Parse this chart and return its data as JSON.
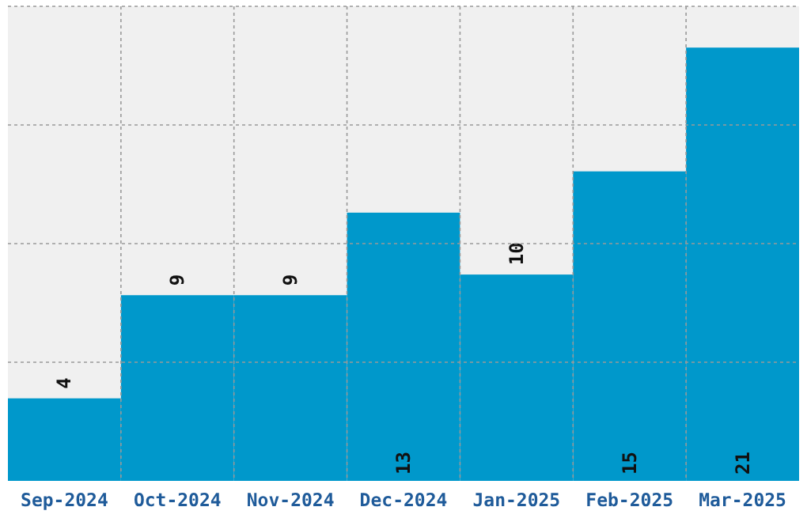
{
  "chart_data": {
    "type": "bar",
    "categories": [
      "Sep-2024",
      "Oct-2024",
      "Nov-2024",
      "Dec-2024",
      "Jan-2025",
      "Feb-2025",
      "Mar-2025"
    ],
    "values": [
      4,
      9,
      9,
      13,
      10,
      15,
      21
    ],
    "color": "#0098cb",
    "ylim": [
      0,
      23
    ],
    "yticks": [
      {
        "value": 5.75,
        "label": null
      },
      {
        "value": 11.5,
        "label": null
      },
      {
        "value": 17.25,
        "label": null
      }
    ],
    "grid": true,
    "data_labels": true,
    "tick_labels": "x"
  }
}
